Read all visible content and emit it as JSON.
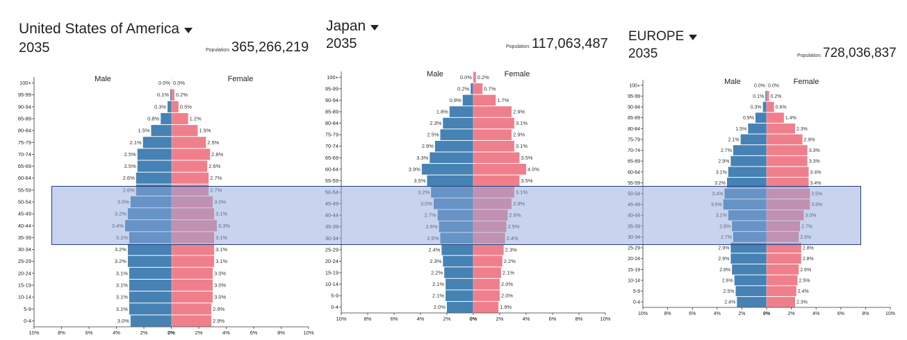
{
  "charts": [
    {
      "country": "United States of America",
      "year": "2035",
      "population_label": "Population:",
      "population": "365,266,219",
      "male_label": "Male",
      "female_label": "Female"
    },
    {
      "country": "Japan",
      "year": "2035",
      "population_label": "Population:",
      "population": "117,063,487",
      "male_label": "Male",
      "female_label": "Female"
    },
    {
      "country": "EUROPE",
      "year": "2035",
      "population_label": "Population:",
      "population": "728,036,837",
      "male_label": "Male",
      "female_label": "Female"
    }
  ],
  "colors": {
    "male": "#4682b4",
    "female": "#f07f8c",
    "brush": "#8ba6da"
  },
  "chart_data": [
    {
      "type": "bar",
      "title": "United States of America",
      "categories": [
        "100+",
        "95-99",
        "90-94",
        "85-89",
        "80-84",
        "75-79",
        "70-74",
        "65-69",
        "60-64",
        "55-59",
        "50-54",
        "45-49",
        "40-44",
        "35-39",
        "30-34",
        "25-29",
        "20-24",
        "15-19",
        "10-14",
        "5-9",
        "0-4"
      ],
      "series": [
        {
          "name": "Male",
          "values": [
            0.0,
            0.1,
            0.3,
            0.8,
            1.5,
            2.1,
            2.5,
            2.5,
            2.6,
            2.6,
            3.0,
            3.2,
            3.4,
            3.1,
            3.2,
            3.2,
            3.1,
            3.1,
            3.1,
            3.1,
            3.0
          ]
        },
        {
          "name": "Female",
          "values": [
            0.0,
            0.2,
            0.5,
            1.2,
            1.9,
            2.5,
            2.8,
            2.6,
            2.7,
            2.7,
            3.0,
            3.1,
            3.3,
            3.1,
            3.1,
            3.1,
            3.0,
            3.0,
            3.0,
            2.9,
            2.9
          ]
        }
      ],
      "xticks": [
        "10%",
        "8%",
        "6%",
        "4%",
        "2%",
        "0%",
        "2%",
        "4%",
        "6%",
        "8%",
        "10%"
      ],
      "xlim": [
        -10,
        10
      ]
    },
    {
      "type": "bar",
      "title": "Japan",
      "categories": [
        "100+",
        "95-99",
        "90-94",
        "85-89",
        "80-84",
        "75-79",
        "70-74",
        "65-69",
        "60-64",
        "55-59",
        "50-54",
        "45-49",
        "40-44",
        "35-39",
        "30-34",
        "25-29",
        "20-24",
        "15-19",
        "10-14",
        "5-9",
        "0-4"
      ],
      "series": [
        {
          "name": "Male",
          "values": [
            0.0,
            0.2,
            0.8,
            1.8,
            2.3,
            2.5,
            2.9,
            3.3,
            3.9,
            3.5,
            3.2,
            3.0,
            2.7,
            2.6,
            2.5,
            2.4,
            2.3,
            2.2,
            2.1,
            2.1,
            2.0
          ]
        },
        {
          "name": "Female",
          "values": [
            0.2,
            0.7,
            1.7,
            2.9,
            3.1,
            2.9,
            3.1,
            3.5,
            4.0,
            3.5,
            3.1,
            2.9,
            2.6,
            2.5,
            2.4,
            2.3,
            2.2,
            2.1,
            2.0,
            2.0,
            1.9
          ]
        }
      ],
      "xticks": [
        "10%",
        "8%",
        "6%",
        "4%",
        "2%",
        "0%",
        "2%",
        "4%",
        "6%",
        "8%",
        "10%"
      ],
      "xlim": [
        -10,
        10
      ]
    },
    {
      "type": "bar",
      "title": "EUROPE",
      "categories": [
        "100+",
        "95-99",
        "90-94",
        "85-89",
        "80-84",
        "75-79",
        "70-74",
        "65-69",
        "60-64",
        "55-59",
        "50-54",
        "45-49",
        "40-44",
        "35-39",
        "30-34",
        "25-29",
        "20-24",
        "15-19",
        "10-14",
        "5-9",
        "0-4"
      ],
      "series": [
        {
          "name": "Male",
          "values": [
            0.0,
            0.1,
            0.3,
            0.9,
            1.5,
            2.1,
            2.7,
            2.9,
            3.1,
            3.2,
            3.4,
            3.5,
            3.1,
            2.8,
            2.7,
            2.9,
            2.9,
            2.8,
            2.6,
            2.5,
            2.4
          ]
        },
        {
          "name": "Female",
          "values": [
            0.0,
            0.2,
            0.6,
            1.4,
            2.3,
            2.9,
            3.3,
            3.3,
            3.4,
            3.4,
            3.5,
            3.5,
            3.0,
            2.7,
            2.6,
            2.8,
            2.8,
            2.6,
            2.5,
            2.4,
            2.3
          ]
        }
      ],
      "xticks": [
        "10%",
        "8%",
        "6%",
        "4%",
        "2%",
        "0%",
        "2%",
        "4%",
        "6%",
        "8%",
        "10%"
      ],
      "xlim": [
        -10,
        10
      ]
    }
  ]
}
